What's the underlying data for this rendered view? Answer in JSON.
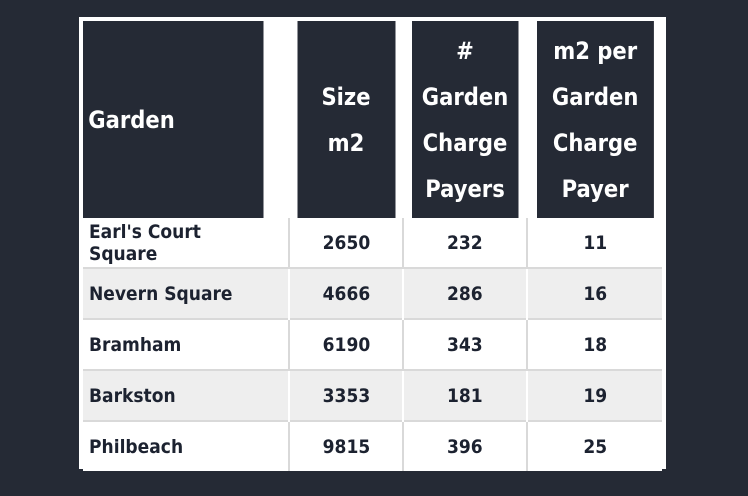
{
  "table": {
    "headers": [
      "Garden",
      "Size\nm2",
      "#\nGarden\nCharge\nPayers",
      "m2 per\nGarden\nCharge\nPayer"
    ],
    "rows": [
      [
        "Earl's Court Square",
        "2650",
        "232",
        "11"
      ],
      [
        "Nevern Square",
        "4666",
        "286",
        "16"
      ],
      [
        "Bramham",
        "6190",
        "343",
        "18"
      ],
      [
        "Barkston",
        "3353",
        "181",
        "19"
      ],
      [
        "Philbeach",
        "9815",
        "396",
        "25"
      ]
    ]
  },
  "colors": {
    "background": "#252a35",
    "header_bg": "#252a35",
    "row_alt": "#eeeeee",
    "text": "#1c2230"
  }
}
